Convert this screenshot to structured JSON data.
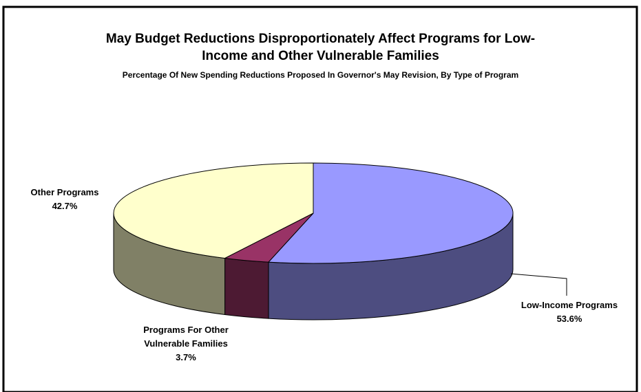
{
  "chart_data": {
    "type": "pie",
    "title_line_1": "May Budget Reductions Disproportionately Affect Programs for Low-",
    "title_line_2": "Income and Other Vulnerable Families",
    "subtitle": "Percentage Of New Spending Reductions Proposed In Governor's May Revision, By Type of Program",
    "three_d": true,
    "slices": [
      {
        "label": "Low-Income Programs",
        "label_lines": [
          "Low-Income Programs",
          "53.6%"
        ],
        "value": 53.6,
        "color": "#9999ff",
        "side_color": "#4d4d80"
      },
      {
        "label": "Programs For Other Vulnerable Families",
        "label_lines": [
          "Programs For Other",
          "Vulnerable Families",
          "3.7%"
        ],
        "value": 3.7,
        "color": "#993366",
        "side_color": "#4d1a33"
      },
      {
        "label": "Other Programs",
        "label_lines": [
          "Other Programs",
          "42.7%"
        ],
        "value": 42.7,
        "color": "#ffffcc",
        "side_color": "#808066"
      }
    ]
  }
}
